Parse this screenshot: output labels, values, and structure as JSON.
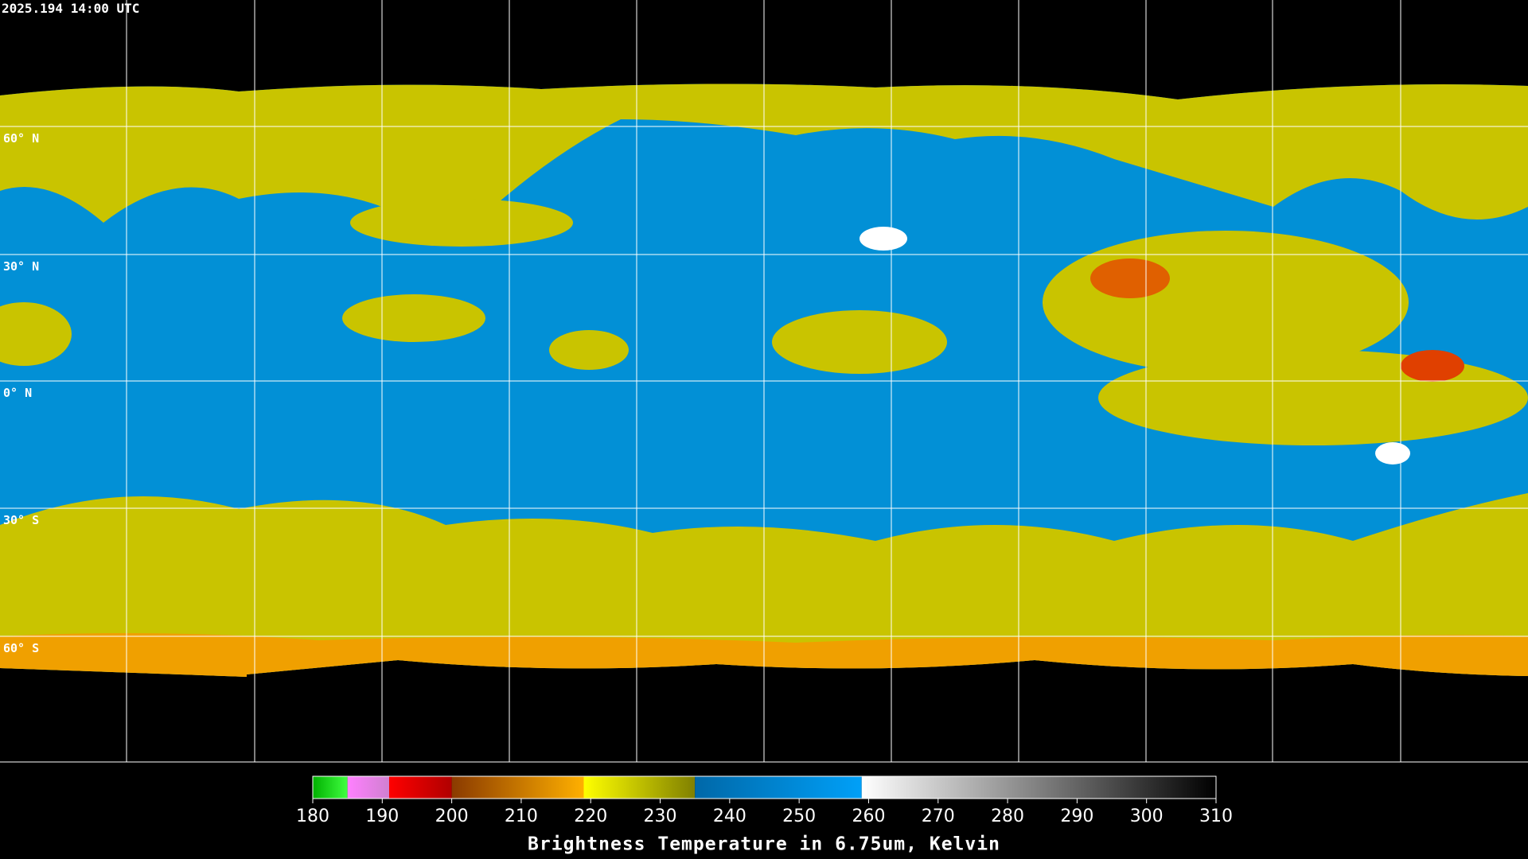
{
  "header": {
    "timestamp": "2025.194 14:00 UTC"
  },
  "map": {
    "lat_labels": [
      "60° N",
      "30° N",
      "0° N",
      "30° S",
      "60° S"
    ]
  },
  "colorbar": {
    "min": 180,
    "max": 310,
    "ticks": [
      180,
      190,
      200,
      210,
      220,
      230,
      240,
      250,
      260,
      270,
      280,
      290,
      300,
      310
    ],
    "segments": [
      {
        "from": 180,
        "to": 185,
        "colors": [
          "#00b000",
          "#40ff40"
        ]
      },
      {
        "from": 185,
        "to": 191,
        "colors": [
          "#ff80ff",
          "#d080d0"
        ]
      },
      {
        "from": 191,
        "to": 200,
        "colors": [
          "#ff0000",
          "#b00000"
        ]
      },
      {
        "from": 200,
        "to": 219,
        "colors": [
          "#8a3a00",
          "#ffb000"
        ]
      },
      {
        "from": 219,
        "to": 235,
        "colors": [
          "#ffff00",
          "#808000"
        ]
      },
      {
        "from": 235,
        "to": 259,
        "colors": [
          "#0068a8",
          "#00a0f8"
        ]
      },
      {
        "from": 259,
        "to": 310,
        "colors": [
          "#ffffff",
          "#000000"
        ]
      }
    ],
    "label": "Brightness Temperature in 6.75um, Kelvin"
  }
}
